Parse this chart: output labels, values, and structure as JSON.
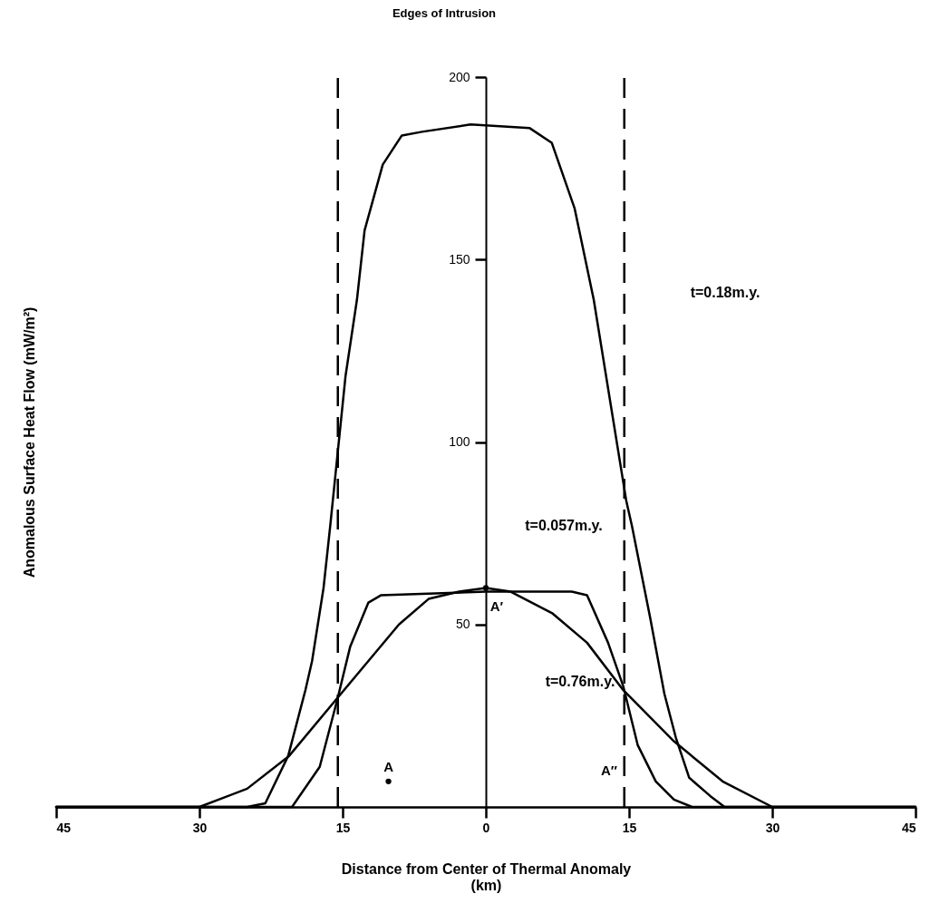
{
  "chart_data": {
    "type": "line",
    "xlabel": "Distance from Center of Thermal Anomaly\n(km)",
    "ylabel": "Anomalous Surface Heat Flow (mW/m²)",
    "xlim": [
      -45,
      45
    ],
    "ylim": [
      0,
      200
    ],
    "xticks": [
      {
        "value": -45,
        "label": "45"
      },
      {
        "value": -30,
        "label": "30"
      },
      {
        "value": -15,
        "label": "15"
      },
      0,
      15,
      30,
      45
    ],
    "yticks": [
      50,
      100,
      150,
      200
    ],
    "series": [
      {
        "type": "line",
        "color": "#000000",
        "x": [
          -45,
          -25,
          -23.1,
          -20.7,
          -18.9,
          -18.2,
          -17,
          -16.3,
          -14.7,
          -13.5,
          -12.7,
          -10.8,
          -8.8,
          -6.7,
          -1.6,
          4.6,
          6.9,
          9.3,
          11.3,
          14.7,
          15.3,
          17.2,
          18.7,
          19.9,
          21.3,
          23.5,
          25,
          45
        ],
        "values": [
          0,
          0,
          1,
          14,
          32,
          40,
          60,
          77,
          118,
          139,
          158,
          176,
          184,
          185,
          187,
          186,
          182,
          164,
          139,
          84,
          77,
          52,
          31,
          19,
          8,
          3,
          0,
          0
        ]
      },
      {
        "type": "line",
        "color": "#000000",
        "x": [
          -45,
          -20.3,
          -17.4,
          -15.5,
          -14.2,
          -12.3,
          -11,
          0,
          9,
          10.6,
          12.8,
          14.4,
          15.9,
          17.8,
          19.7,
          21.6,
          45
        ],
        "values": [
          0,
          0,
          11,
          30,
          44,
          56,
          58,
          59,
          59,
          58,
          45,
          33,
          17,
          7,
          2,
          0,
          0
        ]
      },
      {
        "type": "line",
        "color": "#000000",
        "x": [
          -45,
          -33,
          -30,
          -25,
          -20.6,
          -15.5,
          -12.3,
          -9.1,
          -6,
          -2.8,
          0,
          2.6,
          7,
          10.6,
          14.4,
          19.7,
          24.8,
          30,
          45
        ],
        "values": [
          0,
          0,
          0,
          5,
          14,
          30,
          40,
          50,
          57,
          59,
          60,
          59,
          53,
          45,
          32,
          18,
          7,
          0,
          0
        ]
      },
      {
        "type": "scatter",
        "color": "#000000",
        "marker": "circle",
        "x": [
          -10.2,
          0
        ],
        "values": [
          7,
          60
        ]
      }
    ],
    "ref_lines": [
      {
        "axis": "x",
        "value": -15.5,
        "line_style": "dashed",
        "color": "#000000"
      },
      {
        "axis": "x",
        "value": 14.5,
        "line_style": "dashed",
        "color": "#000000"
      }
    ],
    "annotations": [
      "Edges of Intrusion",
      "t=0.18m.y.",
      "t=0.057m.y.",
      "t=0.76m.y.",
      {
        "text": "A",
        "x": -10.2,
        "y": 7
      },
      {
        "text": "A′",
        "x": 0,
        "y": 60
      },
      "A″"
    ]
  }
}
